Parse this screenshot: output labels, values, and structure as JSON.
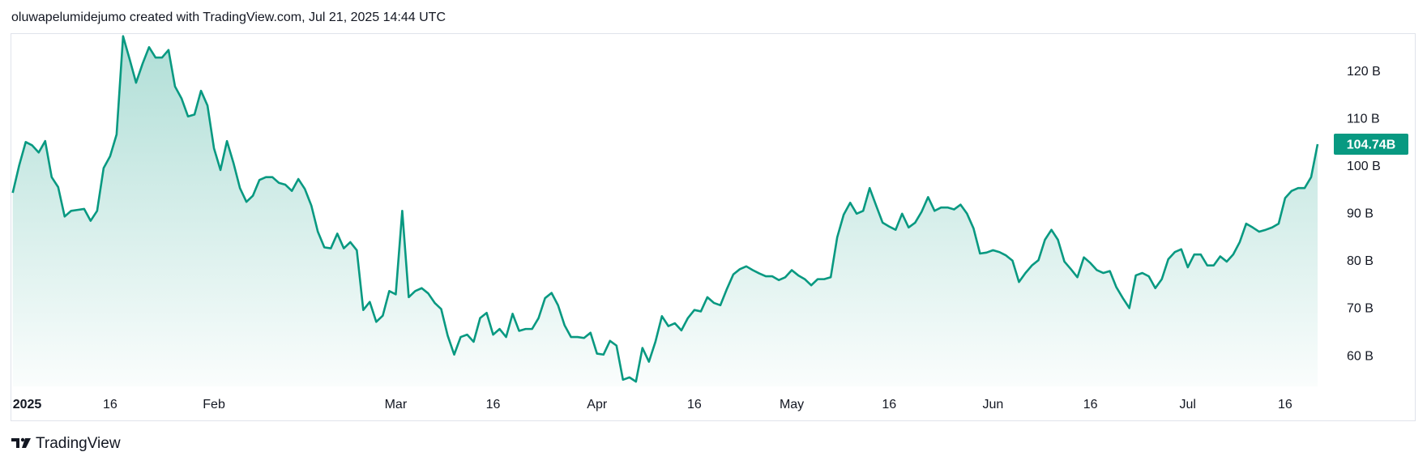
{
  "header": "oluwapelumidejumo created with TradingView.com, Jul 21, 2025 14:44 UTC",
  "brand": "TradingView",
  "chart_data": {
    "type": "area",
    "color": "#089981",
    "categories": [
      "2025",
      null,
      null,
      null,
      null,
      null,
      null,
      null,
      null,
      null,
      null,
      null,
      null,
      null,
      null,
      "16",
      null,
      null,
      null,
      null,
      null,
      null,
      null,
      null,
      null,
      null,
      null,
      null,
      null,
      null,
      null,
      "Feb",
      null,
      null,
      null,
      null,
      null,
      null,
      null,
      null,
      null,
      null,
      null,
      null,
      null,
      null,
      null,
      null,
      null,
      null,
      null,
      null,
      null,
      null,
      null,
      null,
      null,
      null,
      null,
      "Mar",
      null,
      null,
      null,
      null,
      null,
      null,
      null,
      null,
      null,
      null,
      null,
      null,
      null,
      null,
      "16",
      null,
      null,
      null,
      null,
      null,
      null,
      null,
      null,
      null,
      null,
      null,
      null,
      null,
      null,
      null,
      "Apr",
      null,
      null,
      null,
      null,
      null,
      null,
      null,
      null,
      null,
      null,
      null,
      null,
      null,
      null,
      "16",
      null,
      null,
      null,
      null,
      null,
      null,
      null,
      null,
      null,
      null,
      null,
      null,
      null,
      null,
      "May",
      null,
      null,
      null,
      null,
      null,
      null,
      null,
      null,
      null,
      null,
      null,
      null,
      null,
      null,
      "16",
      null,
      null,
      null,
      null,
      null,
      null,
      null,
      null,
      null,
      null,
      null,
      null,
      null,
      null,
      null,
      "Jun",
      null,
      null,
      null,
      null,
      null,
      null,
      null,
      null,
      null,
      null,
      null,
      null,
      null,
      null,
      "16",
      null,
      null,
      null,
      null,
      null,
      null,
      null,
      null,
      null,
      null,
      null,
      null,
      null,
      null,
      "Jul",
      null,
      null,
      null,
      null,
      null,
      null,
      null,
      null,
      null,
      null,
      null,
      null,
      null,
      null,
      "16",
      null,
      null,
      null,
      null,
      null
    ],
    "values": [
      94.5,
      100.3,
      105.2,
      104.5,
      103,
      105.4,
      97.8,
      95.7,
      89.5,
      90.7,
      90.9,
      91.1,
      88.6,
      90.7,
      99.7,
      102.2,
      106.8,
      127.5,
      122.7,
      117.7,
      121.7,
      125.2,
      123,
      123,
      124.6,
      116.9,
      114.4,
      110.6,
      111,
      116,
      112.9,
      103.9,
      99.3,
      105.4,
      100.8,
      95.5,
      92.6,
      93.9,
      97.2,
      97.8,
      97.8,
      96.6,
      96.2,
      94.9,
      97.4,
      95.3,
      91.8,
      86.3,
      83,
      82.8,
      85.9,
      82.8,
      84.1,
      82.4,
      69.8,
      71.5,
      67.3,
      68.6,
      73.8,
      73.1,
      90.7,
      72.5,
      73.8,
      74.4,
      73.3,
      71.3,
      70,
      64.4,
      60.4,
      64.1,
      64.6,
      63.1,
      68.1,
      69.2,
      64.6,
      65.8,
      64.1,
      69,
      65.4,
      65.8,
      65.8,
      68.1,
      72.3,
      73.4,
      70.8,
      66.6,
      64.1,
      64.1,
      63.9,
      65,
      60.6,
      60.4,
      63.3,
      62.3,
      55.1,
      55.6,
      54.7,
      61.8,
      58.9,
      63.1,
      68.5,
      66.4,
      67,
      65.5,
      68.1,
      69.8,
      69.5,
      72.5,
      71.3,
      70.8,
      74.2,
      77.3,
      78.4,
      79,
      78.2,
      77.5,
      76.9,
      76.9,
      76.1,
      76.7,
      78.2,
      77.1,
      76.3,
      75,
      76.3,
      76.3,
      76.7,
      85.1,
      89.9,
      92.4,
      90.1,
      90.7,
      95.5,
      91.8,
      88.2,
      87.4,
      86.7,
      90.1,
      87.2,
      88.2,
      90.5,
      93.6,
      90.7,
      91.4,
      91.4,
      91,
      92,
      90.1,
      87,
      81.7,
      81.9,
      82.4,
      82,
      81.3,
      80.2,
      75.7,
      77.6,
      79.2,
      80.3,
      84.6,
      86.7,
      84.6,
      80,
      78.4,
      76.7,
      80.9,
      79.7,
      78.2,
      77.6,
      78,
      74.6,
      72.3,
      70.2,
      77.1,
      77.6,
      76.9,
      74.4,
      76.3,
      80.5,
      82,
      82.6,
      78.8,
      81.5,
      81.5,
      79.2,
      79.2,
      81.1,
      80,
      81.5,
      84.1,
      88,
      87.2,
      86.3,
      86.7,
      87.2,
      88,
      93.4,
      94.9,
      95.5,
      95.5,
      97.8,
      104.74
    ],
    "last_value_label": "104.74B",
    "ylim": [
      53.7,
      128.05
    ],
    "yticks": [
      {
        "value": 60,
        "label": "60 B"
      },
      {
        "value": 70,
        "label": "70 B"
      },
      {
        "value": 80,
        "label": "80 B"
      },
      {
        "value": 90,
        "label": "90 B"
      },
      {
        "value": 100,
        "label": "100 B"
      },
      {
        "value": 110,
        "label": "110 B"
      },
      {
        "value": 120,
        "label": "120 B"
      }
    ],
    "grid": false
  }
}
